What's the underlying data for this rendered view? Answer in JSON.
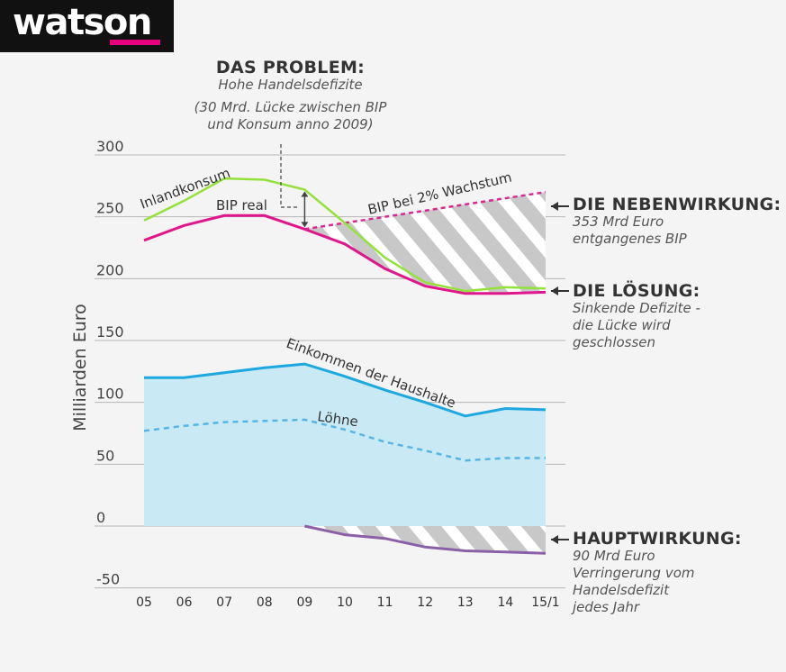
{
  "brand": {
    "name": "watson"
  },
  "annotations": {
    "problem": {
      "heading": "DAS PROBLEM:",
      "sub": "Hohe Handelsdefizite",
      "note_1": "(30 Mrd. Lücke zwischen BIP",
      "note_2": "und Konsum anno 2009)"
    },
    "side_effect": {
      "heading": "DIE NEBENWIRKUNG:",
      "line_1": "353 Mrd Euro",
      "line_2": "entgangenes BIP"
    },
    "solution": {
      "heading": "DIE LÖSUNG:",
      "line_1": "Sinkende Defizite -",
      "line_2": "die Lücke wird",
      "line_3": "geschlossen"
    },
    "main_effect": {
      "heading": "HAUPTWIRKUNG:",
      "line_1": "90 Mrd Euro",
      "line_2": "Verringerung vom",
      "line_3": "Handelsdefizit",
      "line_4": "jedes Jahr"
    }
  },
  "colors": {
    "consumption": "#93e23c",
    "gdp": "#e0168c",
    "gdp_trend": "#d9288f",
    "income": "#1da8e0",
    "income_fill": "#c9e9f5",
    "wages": "#55b6e6",
    "trade": "#8a60a6",
    "hatch_gray": "#c8c8c8",
    "grid": "#b7b7b7"
  },
  "chart_data": {
    "type": "line",
    "xlabel": "",
    "ylabel": "Milliarden Euro",
    "categories": [
      "05",
      "06",
      "07",
      "08",
      "09",
      "10",
      "11",
      "12",
      "13",
      "14",
      "15/1"
    ],
    "y_ticks": [
      "300",
      "250",
      "200",
      "150",
      "100",
      "50",
      "0",
      "-50"
    ],
    "ylim": [
      -50,
      300
    ],
    "grid": true,
    "series": [
      {
        "name": "Inlandkonsum",
        "values": [
          247,
          263,
          281,
          280,
          272,
          245,
          217,
          197,
          190,
          193,
          192
        ]
      },
      {
        "name": "BIP real",
        "values": [
          231,
          243,
          251,
          251,
          240,
          228,
          208,
          194,
          188,
          188,
          189
        ]
      },
      {
        "name": "BIP bei 2% Wachstum",
        "values": [
          null,
          null,
          null,
          null,
          240,
          245,
          250,
          255,
          260,
          265,
          270
        ],
        "style": "dashed"
      },
      {
        "name": "Einkommen der Haushalte",
        "values": [
          120,
          120,
          124,
          128,
          131,
          121,
          110,
          100,
          89,
          95,
          94
        ],
        "fill": "to-zero"
      },
      {
        "name": "Löhne",
        "values": [
          77,
          81,
          84,
          85,
          86,
          78,
          68,
          61,
          53,
          55,
          55
        ],
        "style": "dashed"
      },
      {
        "name": "",
        "values": [
          null,
          null,
          null,
          null,
          0,
          -7,
          -10,
          -17,
          -20,
          -21,
          -22
        ],
        "note": "Handelsbilanz (unbeschriftet)"
      }
    ]
  }
}
